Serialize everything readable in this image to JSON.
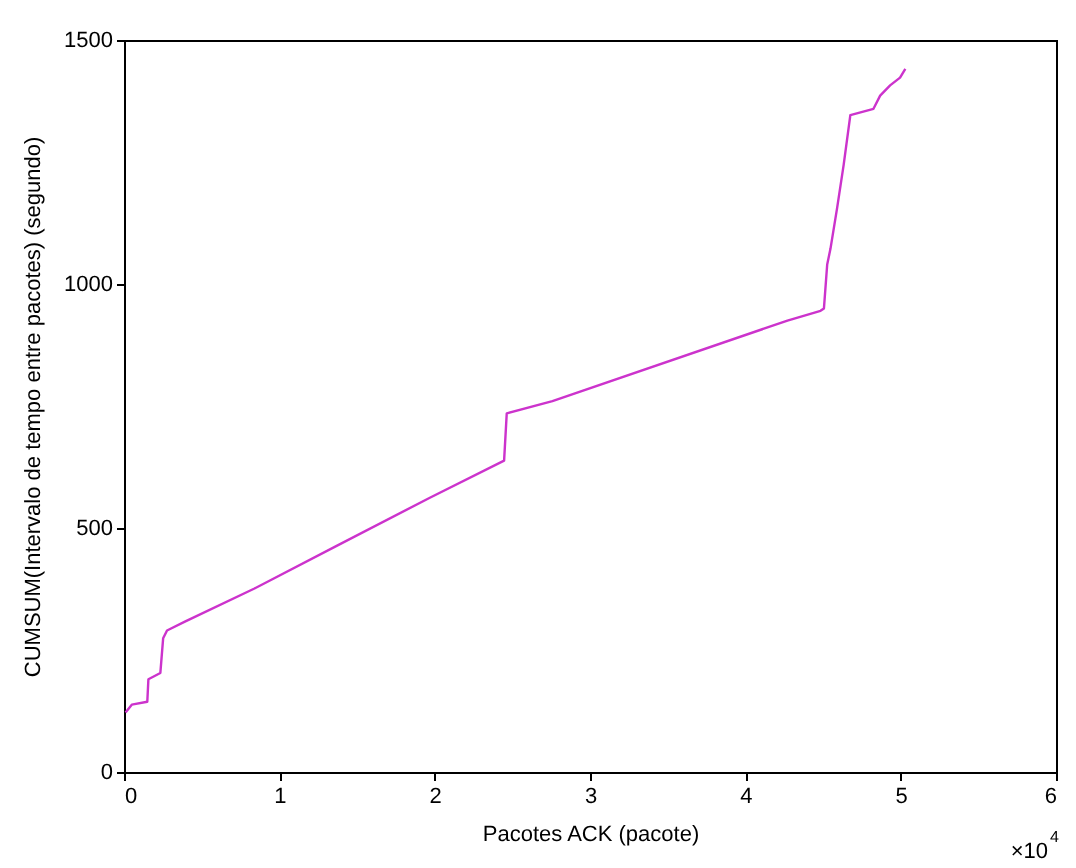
{
  "chart_data": {
    "type": "line",
    "xlabel": "Pacotes  ACK  (pacote)",
    "ylabel": "CUMSUM(Intervalo de tempo entre pacotes) (segundo)",
    "annotations": [
      "×10$^{4}$"
    ],
    "xlim": [
      0,
      6
    ],
    "xticks": [
      0,
      1,
      2,
      3,
      4,
      5,
      6
    ],
    "ylim": [
      0,
      1500
    ],
    "yticks": [
      0,
      500,
      1000,
      1500
    ],
    "grid": false,
    "legend": false,
    "marker": "none",
    "line_style": "solid",
    "series": [
      {
        "color": "#cc33cc",
        "x": [
          0.01,
          0.05,
          0.15,
          0.157,
          0.234,
          0.252,
          0.277,
          0.392,
          0.84,
          1.372,
          1.969,
          2.447,
          2.464,
          2.758,
          4.271,
          4.484,
          4.506,
          4.527,
          4.548,
          4.591,
          4.633,
          4.676,
          4.825,
          4.868,
          4.932,
          4.996,
          5.03
        ],
        "values": [
          122,
          138,
          144,
          190,
          203,
          274,
          290,
          308,
          376,
          464,
          562,
          638,
          735,
          760,
          925,
          945,
          950,
          1040,
          1072,
          1156,
          1244,
          1346,
          1359,
          1386,
          1407,
          1423,
          1441
        ]
      }
    ]
  }
}
